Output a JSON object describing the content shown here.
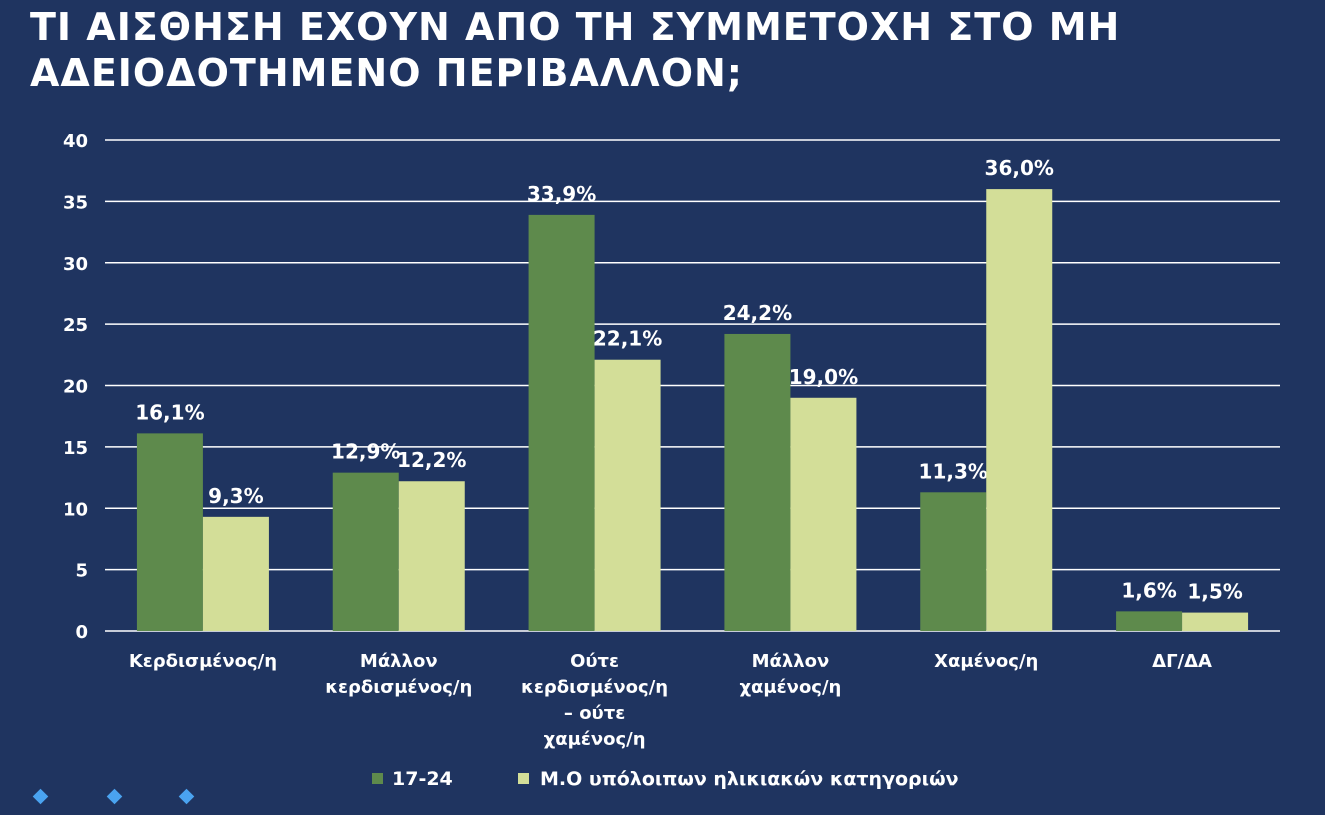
{
  "title": "ΤΙ ΑΙΣΘΗΣΗ ΕΧΟΥΝ ΑΠΟ ΤΗ ΣΥΜΜΕΤΟΧΗ ΣΤΟ ΜΗ ΑΔΕΙΟΔΟΤΗΜΕΝΟ ΠΕΡΙΒΑΛΛΟΝ;",
  "colors": {
    "background": "#1f3460",
    "series1": "#5e8a4c",
    "series2": "#d3de98"
  },
  "decor": {
    "bullets": [
      "diamond-icon",
      "diamond-icon",
      "diamond-icon"
    ]
  },
  "chart_data": {
    "type": "bar",
    "title": "ΤΙ ΑΙΣΘΗΣΗ ΕΧΟΥΝ ΑΠΟ ΤΗ ΣΥΜΜΕΤΟΧΗ ΣΤΟ ΜΗ ΑΔΕΙΟΔΟΤΗΜΕΝΟ ΠΕΡΙΒΑΛΛΟΝ;",
    "categories": [
      [
        "Κερδισμένος/η"
      ],
      [
        "Μάλλον",
        "κερδισμένος/η"
      ],
      [
        "Ούτε",
        "κερδισμένος/η",
        "– ούτε",
        "χαμένος/η"
      ],
      [
        "Μάλλον",
        "χαμένος/η"
      ],
      [
        "Χαμένος/η"
      ],
      [
        "ΔΓ/ΔΑ"
      ]
    ],
    "series": [
      {
        "name": "17-24",
        "values": [
          16.1,
          12.9,
          33.9,
          24.2,
          11.3,
          1.6
        ],
        "labels": [
          "16,1%",
          "12,9%",
          "33,9%",
          "24,2%",
          "11,3%",
          "1,6%"
        ]
      },
      {
        "name": "Μ.Ο υπόλοιπων ηλικιακών κατηγοριών",
        "values": [
          9.3,
          12.2,
          22.1,
          19.0,
          36.0,
          1.5
        ],
        "labels": [
          "9,3%",
          "12,2%",
          "22,1%",
          "19,0%",
          "36,0%",
          "1,5%"
        ]
      }
    ],
    "yticks": [
      "0",
      "5",
      "10",
      "15",
      "20",
      "25",
      "30",
      "35",
      "40"
    ],
    "ylim": [
      0,
      40
    ],
    "grid": true,
    "legend": "bottom"
  }
}
